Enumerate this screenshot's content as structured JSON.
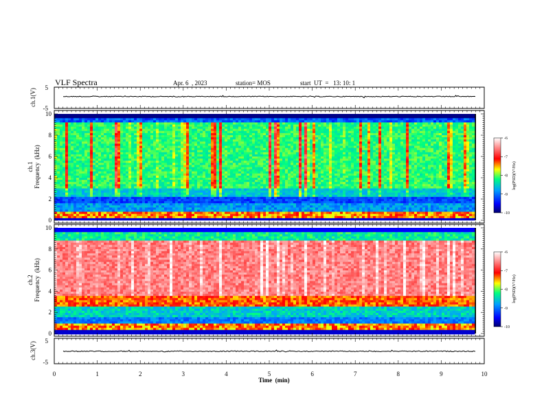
{
  "header": {
    "title": "VLF Spectra",
    "date": "Apr. 6  , 2023",
    "station": "station= MOS",
    "start_ut": "start  UT  =   13: 10: 1"
  },
  "chart_data": [
    {
      "type": "line",
      "panel": "ch1-waveform",
      "ylabel": "ch.1(V)",
      "ylim": [
        -5,
        5
      ],
      "yticks": [
        "5",
        "-5"
      ],
      "xlim": [
        0,
        10
      ],
      "series": [
        {
          "values_description_level": 0.6
        }
      ]
    },
    {
      "type": "heatmap",
      "panel": "ch1-spectrogram",
      "ylabel": "ch.1\nFrequency  (kHz)",
      "ylim": [
        0,
        10
      ],
      "yticks": [
        "0",
        "2",
        "4",
        "6",
        "8",
        "10"
      ],
      "xlim": [
        0,
        9.8
      ],
      "colorbar": {
        "label": "log(PSD)(V²/Hz)",
        "range": [
          -10,
          -6
        ],
        "ticks": [
          "-6",
          "-7",
          "-8",
          "-9",
          "-10"
        ]
      }
    },
    {
      "type": "heatmap",
      "panel": "ch2-spectrogram",
      "ylabel": "ch.2\nFrequency  (kHz)",
      "ylim": [
        0,
        10
      ],
      "yticks": [
        "0",
        "2",
        "4",
        "6",
        "8",
        "10"
      ],
      "xlim": [
        0,
        9.8
      ],
      "colorbar": {
        "label": "log(PSD)(V²/Hz)",
        "range": [
          -10,
          -6
        ],
        "ticks": [
          "-6",
          "-7",
          "-8",
          "-9",
          "-10"
        ]
      }
    },
    {
      "type": "line",
      "panel": "ch3-waveform",
      "ylabel": "ch.3(V)",
      "ylim": [
        -5,
        5
      ],
      "yticks": [
        "5",
        "-5"
      ],
      "xlim": [
        0,
        10
      ],
      "xlabel": "Time  (min)",
      "xticks": [
        "0",
        "1",
        "2",
        "3",
        "4",
        "5",
        "6",
        "7",
        "8",
        "9",
        "10"
      ],
      "series": [
        {
          "values_description_level": -0.1
        }
      ]
    }
  ],
  "labels": {
    "ch1_wave": "ch.1(V)",
    "ch1_spec_a": "ch.1",
    "ch1_spec_b": "Frequency  (kHz)",
    "ch2_spec_a": "ch.2",
    "ch2_spec_b": "Frequency  (kHz)",
    "ch3_wave": "ch.3(V)",
    "xlabel": "Time  (min)",
    "colorbar": "log(PSD)(V²/Hz)"
  },
  "colors": {
    "scale": [
      "#00007a",
      "#0000ff",
      "#0080ff",
      "#00e0ff",
      "#00ff80",
      "#a0ff00",
      "#ffff00",
      "#ff8000",
      "#ff0000",
      "#ffffff"
    ]
  }
}
